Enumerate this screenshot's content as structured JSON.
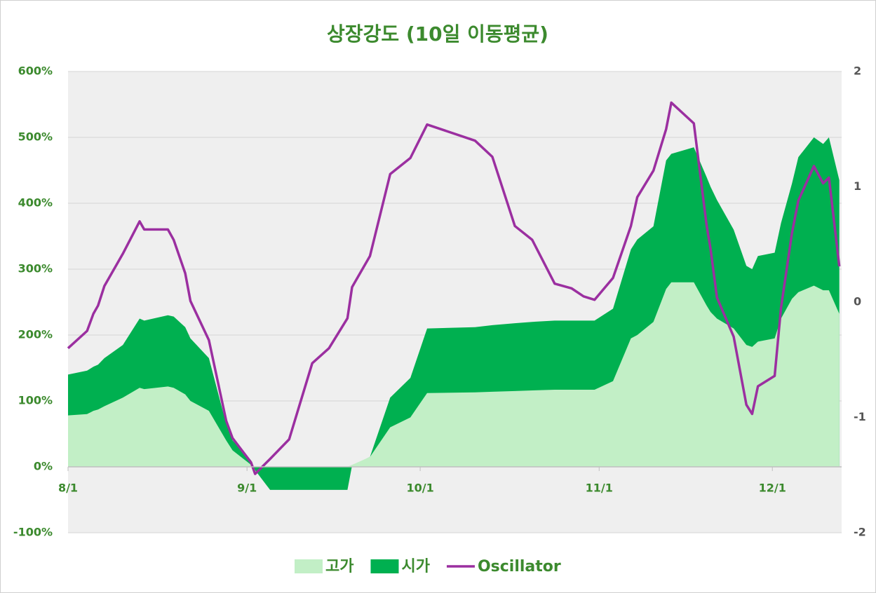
{
  "chart_data": {
    "type": "area-line",
    "title": "상장강도 (10일 이동평균)",
    "x": [
      0,
      3.3,
      4.4,
      5.2,
      6.3,
      9.5,
      12.4,
      13.2,
      17.3,
      18.3,
      20.3,
      21.2,
      24.4,
      27.4,
      28.5,
      31.7,
      32.4,
      35,
      38.3,
      42.3,
      45.2,
      48.4,
      49.2,
      52.3,
      55.8,
      59.3,
      62.2,
      70.5,
      73.5,
      77.4,
      80.4,
      84.3,
      87.2,
      89.3,
      91.2,
      94.4,
      97.5,
      98.6,
      101.4,
      103.6,
      104.5,
      108.4,
      110.6,
      111.3,
      112.4,
      115.3,
      117.5,
      118.5,
      119.5,
      122.4,
      123.5,
      125.4,
      126.5,
      129.2,
      130.8,
      131.8,
      133.6
    ],
    "xlim": [
      0,
      134
    ],
    "xticks": [
      {
        "value": 0,
        "label": "8/1"
      },
      {
        "value": 31,
        "label": "9/1"
      },
      {
        "value": 61,
        "label": "10/1"
      },
      {
        "value": 92,
        "label": "11/1"
      },
      {
        "value": 122,
        "label": "12/1"
      }
    ],
    "ylim": [
      -100,
      600
    ],
    "yticks": [
      {
        "value": -100,
        "label": "-100%"
      },
      {
        "value": 0,
        "label": "0%"
      },
      {
        "value": 100,
        "label": "100%"
      },
      {
        "value": 200,
        "label": "200%"
      },
      {
        "value": 300,
        "label": "300%"
      },
      {
        "value": 400,
        "label": "400%"
      },
      {
        "value": 500,
        "label": "500%"
      },
      {
        "value": 600,
        "label": "600%"
      }
    ],
    "y2lim": [
      -2,
      2
    ],
    "y2ticks": [
      -2,
      -1,
      0,
      1,
      2
    ],
    "grid": true,
    "series": [
      {
        "name": "시가",
        "kind": "area",
        "color": "#00b050",
        "values": [
          140,
          146,
          152,
          155,
          165,
          185,
          225,
          222,
          230,
          228,
          212,
          195,
          165,
          65,
          40,
          10,
          -5,
          -35,
          -35,
          -35,
          -35,
          -35,
          2,
          15,
          105,
          135,
          210,
          212,
          215,
          218,
          220,
          222,
          222,
          222,
          222,
          240,
          330,
          345,
          365,
          465,
          475,
          485,
          440,
          425,
          405,
          360,
          305,
          300,
          320,
          325,
          370,
          430,
          470,
          500,
          490,
          500,
          435
        ]
      },
      {
        "name": "고가",
        "kind": "area",
        "color": "#c2efc6",
        "values": [
          78,
          80,
          85,
          87,
          92,
          105,
          120,
          118,
          122,
          120,
          110,
          100,
          85,
          40,
          25,
          3,
          0,
          0,
          0,
          0,
          0,
          0,
          3,
          15,
          60,
          75,
          112,
          113,
          114,
          115,
          116,
          117,
          117,
          117,
          117,
          130,
          195,
          200,
          220,
          270,
          280,
          280,
          245,
          235,
          225,
          210,
          185,
          182,
          190,
          195,
          225,
          255,
          265,
          275,
          268,
          268,
          232
        ]
      },
      {
        "name": "Oscillator",
        "kind": "line",
        "axis": "y2",
        "color": "#9b2fa0",
        "values": [
          -0.4,
          -0.25,
          -0.1,
          -0.03,
          0.14,
          0.42,
          0.7,
          0.63,
          0.63,
          0.54,
          0.25,
          0.01,
          -0.33,
          -1.03,
          -1.18,
          -1.39,
          -1.49,
          -1.36,
          -1.19,
          -0.53,
          -0.4,
          -0.14,
          0.13,
          0.4,
          1.11,
          1.25,
          1.54,
          1.4,
          1.26,
          0.66,
          0.54,
          0.16,
          0.12,
          0.05,
          0.02,
          0.21,
          0.66,
          0.91,
          1.14,
          1.5,
          1.73,
          1.55,
          0.67,
          0.46,
          0.04,
          -0.3,
          -0.89,
          -0.97,
          -0.73,
          -0.64,
          -0.05,
          0.6,
          0.88,
          1.18,
          1.03,
          1.08,
          0.31
        ]
      }
    ],
    "legend_order": [
      1,
      0,
      2
    ]
  }
}
